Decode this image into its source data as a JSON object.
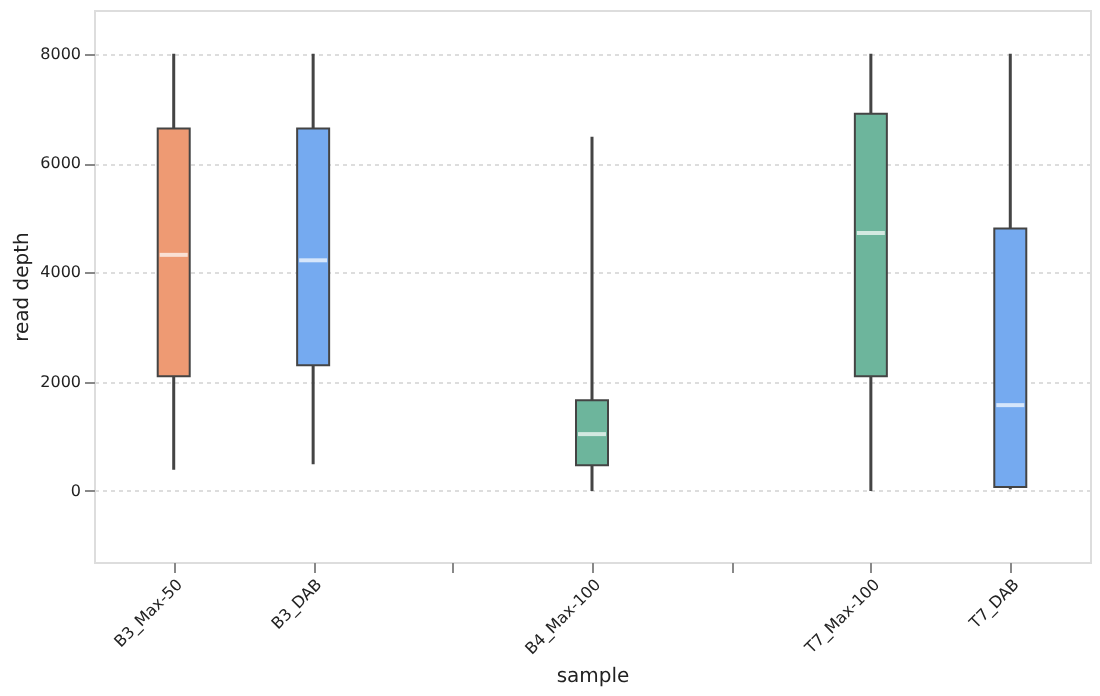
{
  "chart_data": {
    "type": "box",
    "xlabel": "sample",
    "ylabel": "read depth",
    "categories": [
      "B3_Max-50",
      "B3_DAB",
      null,
      "B4_Max-100",
      null,
      "T7_Max-100",
      "T7_DAB"
    ],
    "boxes": [
      {
        "low": 390,
        "q1": 2100,
        "median": 4320,
        "q3": 6630,
        "high": 8000
      },
      {
        "low": 490,
        "q1": 2300,
        "median": 4220,
        "q3": 6630,
        "high": 8000
      },
      null,
      {
        "low": 0,
        "q1": 470,
        "median": 1040,
        "q3": 1660,
        "high": 6480
      },
      null,
      {
        "low": 0,
        "q1": 2100,
        "median": 4720,
        "q3": 6900,
        "high": 8000
      },
      {
        "low": 30,
        "q1": 70,
        "median": 1570,
        "q3": 4800,
        "high": 8000
      }
    ],
    "colors": [
      "#ee9a73",
      "#75aaf0",
      null,
      "#6db59c",
      null,
      "#6db59c",
      "#75aaf0"
    ],
    "ylim": [
      -1300,
      8800
    ],
    "yticks": [
      0,
      2000,
      4000,
      6000,
      8000
    ],
    "grid": "y"
  }
}
